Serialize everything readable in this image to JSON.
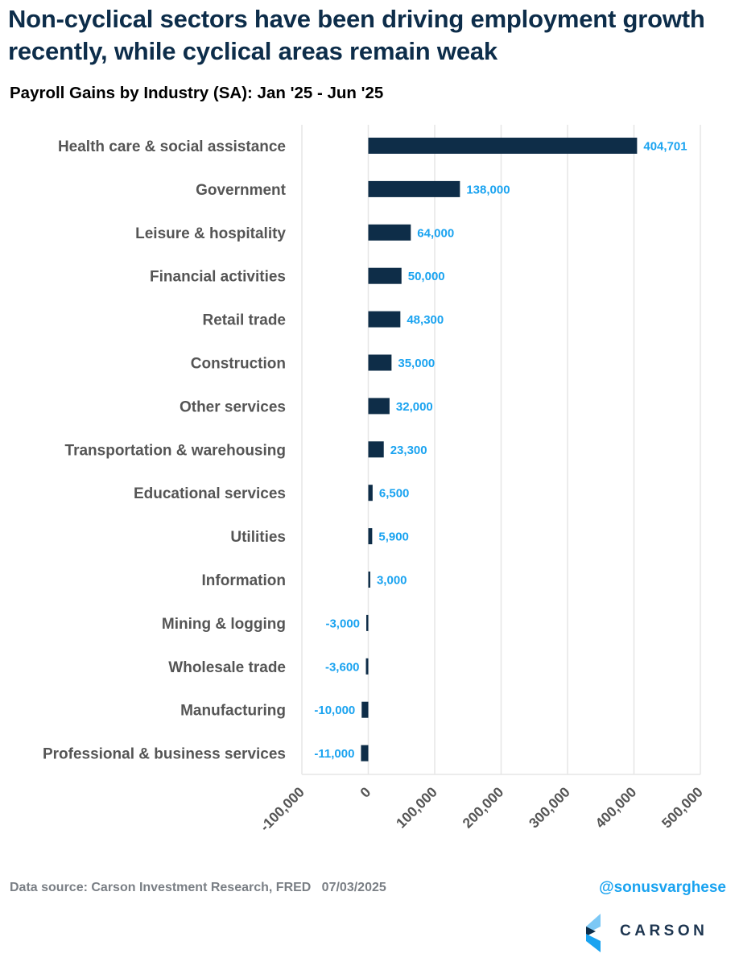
{
  "header": {
    "title": "Non-cyclical sectors have been driving employment growth recently, while cyclical areas remain weak",
    "subtitle": "Payroll Gains by Industry (SA): Jan '25 - Jun '25"
  },
  "chart_data": {
    "type": "bar",
    "orientation": "horizontal",
    "title": "Payroll Gains by Industry (SA): Jan '25 - Jun '25",
    "xlabel": "",
    "ylabel": "",
    "xlim": [
      -100000,
      500000
    ],
    "x_ticks": [
      -100000,
      0,
      100000,
      200000,
      300000,
      400000,
      500000
    ],
    "x_tick_labels": [
      "-100,000",
      "0",
      "100,000",
      "200,000",
      "300,000",
      "400,000",
      "500,000"
    ],
    "grid": true,
    "legend": "none",
    "categories": [
      "Health care & social assistance",
      "Government",
      "Leisure & hospitality",
      "Financial activities",
      "Retail trade",
      "Construction",
      "Other services",
      "Transportation & warehousing",
      "Educational services",
      "Utilities",
      "Information",
      "Mining & logging",
      "Wholesale trade",
      "Manufacturing",
      "Professional & business services"
    ],
    "values": [
      404701,
      138000,
      64000,
      50000,
      48300,
      35000,
      32000,
      23300,
      6500,
      5900,
      3000,
      -3000,
      -3600,
      -10000,
      -11000
    ],
    "value_labels": [
      "404,701",
      "138,000",
      "64,000",
      "50,000",
      "48,300",
      "35,000",
      "32,000",
      "23,300",
      "6,500",
      "5,900",
      "3,000",
      "-3,000",
      "-3,600",
      "-10,000",
      "-11,000"
    ],
    "colors": {
      "bar": "#0e2d48",
      "value_label": "#1aa3f0",
      "category_label": "#555555",
      "grid": "#e6e6e6"
    }
  },
  "footer": {
    "source": "Data source: Carson Investment Research, FRED   07/03/2025",
    "handle": "@sonusvarghese",
    "logo_text": "CARSON"
  }
}
